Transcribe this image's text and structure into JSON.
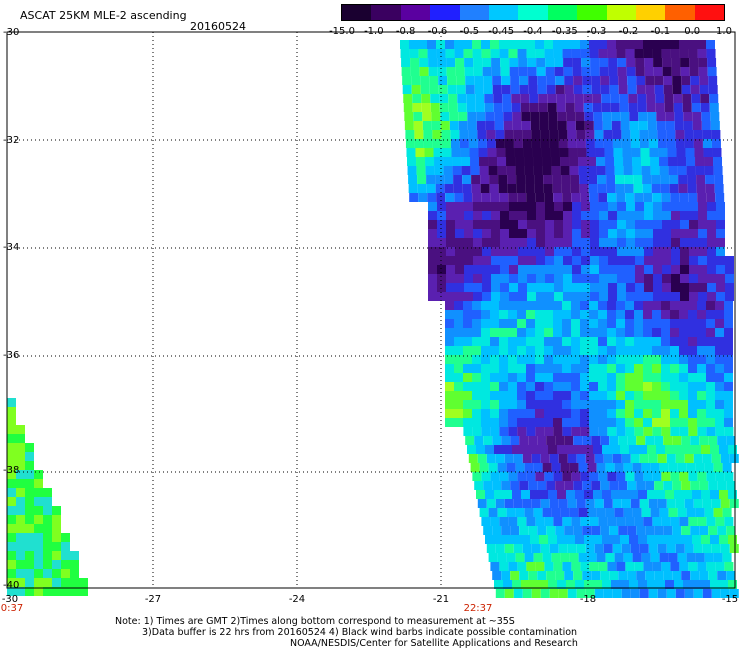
{
  "title": "ASCAT 25KM MLE-2 ascending",
  "date": "20160524",
  "colorbar": {
    "labels": [
      "-15.0",
      "-1.0",
      "-0.8",
      "-0.6",
      "-0.5",
      "-0.45",
      "-0.4",
      "-0.35",
      "-0.3",
      "-0.2",
      "-0.1",
      "0.0",
      "1.0"
    ],
    "colors": [
      "#1a0030",
      "#3a0060",
      "#5a00a0",
      "#2020ff",
      "#2080ff",
      "#00c8ff",
      "#00ffd0",
      "#00ff60",
      "#40ff00",
      "#c0ff00",
      "#ffd000",
      "#ff6000",
      "#ff1010"
    ]
  },
  "lat_labels": [
    "-30",
    "-32",
    "-34",
    "-36",
    "-38",
    "-40"
  ],
  "lon_labels": [
    "-30",
    "-27",
    "-24",
    "-21",
    "-18",
    "-15"
  ],
  "time_labels": [
    "0:37",
    "22:37"
  ],
  "notes": [
    "Note: 1) Times are GMT 2)Times along bottom correspond to measurement at ~35S",
    "3)Data buffer is 22 hrs from 20160524 4) Black wind barbs indicate possible contamination",
    "NOAA/NESDIS/Center for Satellite Applications and Research"
  ]
}
